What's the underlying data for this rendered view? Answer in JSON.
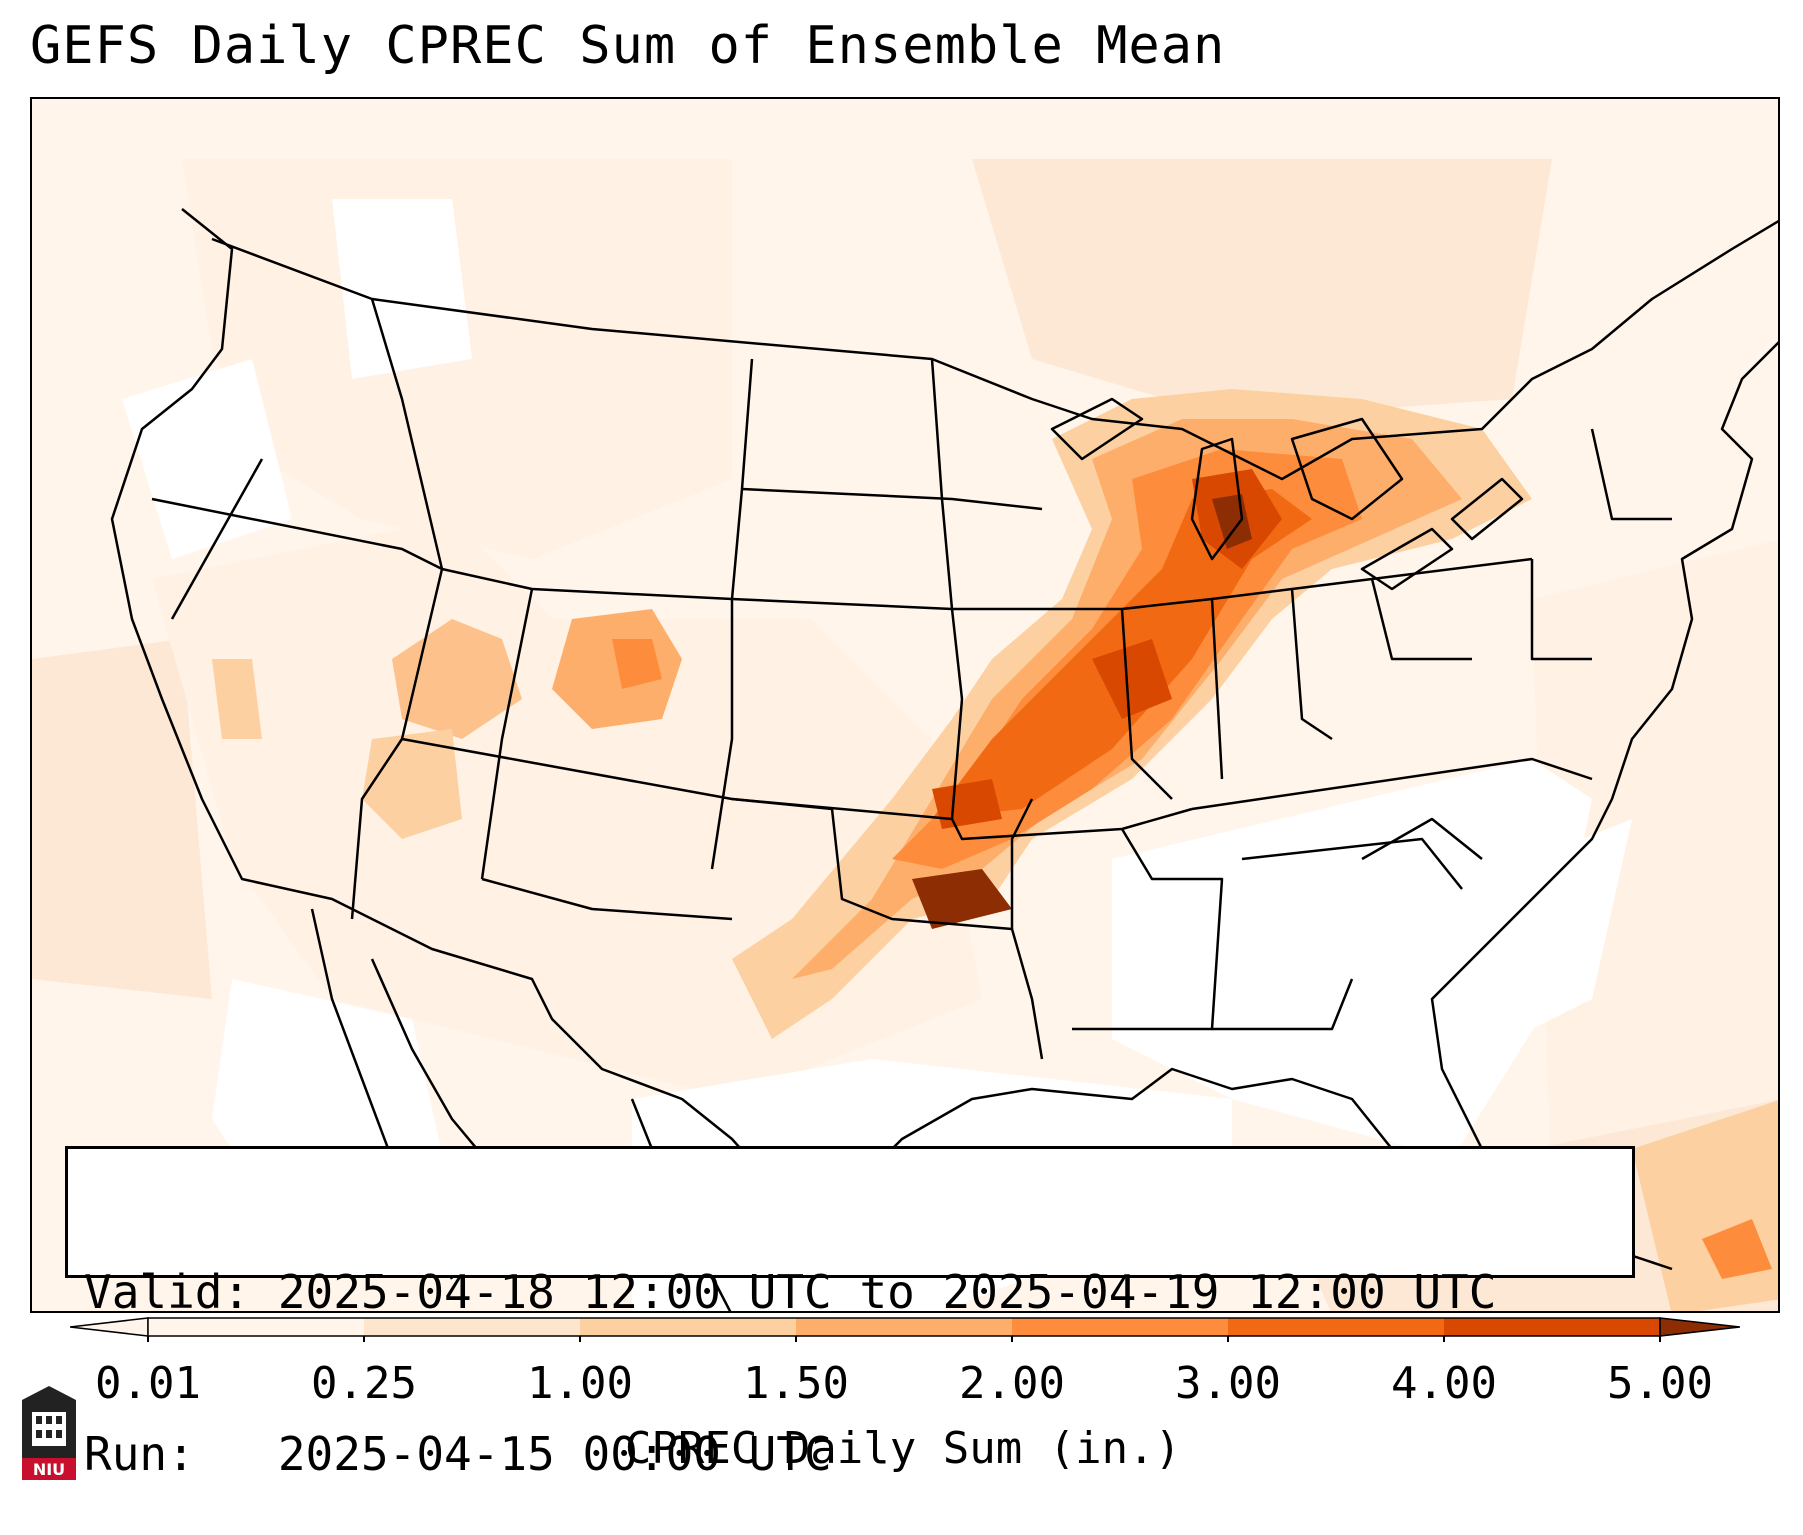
{
  "title": "GEFS Daily CPREC Sum of Ensemble Mean",
  "valid_line": "Valid: 2025-04-18 12:00 UTC to 2025-04-19 12:00 UTC",
  "run_line": "Run:   2025-04-15 00:00 UTC",
  "colorbar": {
    "label": "CPREC Daily Sum (in.)",
    "ticks": [
      "0.01",
      "0.25",
      "1.00",
      "1.50",
      "2.00",
      "3.00",
      "4.00",
      "5.00"
    ],
    "colors": [
      "#fff5eb",
      "#fee6ce",
      "#fdd0a2",
      "#fdae6b",
      "#fd8d3c",
      "#f16913",
      "#d94801",
      "#8c2d04"
    ],
    "extend_low_color": "#fff5eb",
    "extend_high_color": "#8c2d04"
  },
  "logo_text": "NIU"
}
